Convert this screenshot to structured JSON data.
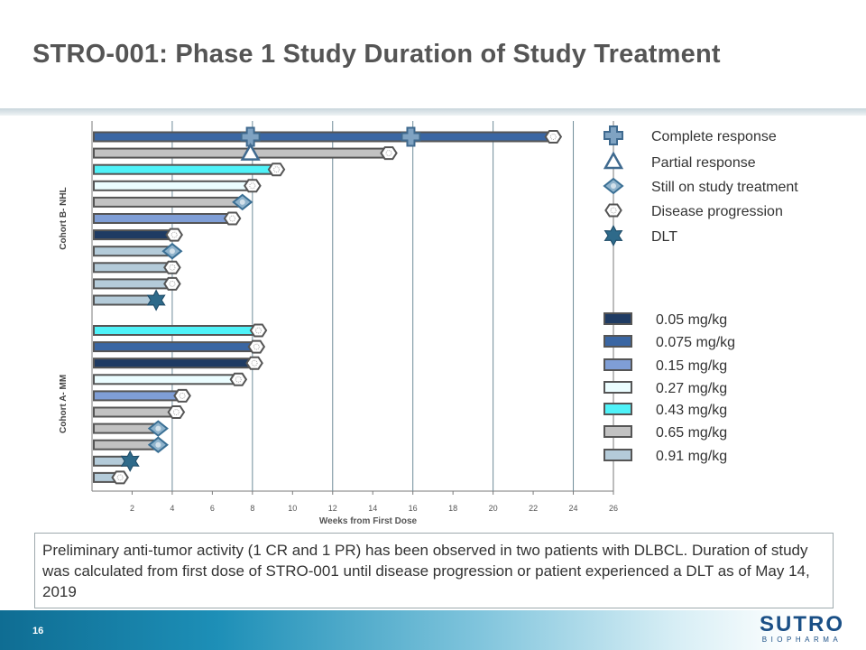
{
  "slide": {
    "title": "STRO-001:  Phase 1 Study Duration of Study Treatment",
    "caption": "Preliminary anti-tumor activity (1 CR and 1 PR) has been observed in two patients with DLBCL. Duration of study was calculated from first dose of STRO-001 until disease progression or patient experienced a DLT as of May 14, 2019",
    "page_number": "16",
    "logo_main": "SUTRO",
    "logo_sub": "BIOPHARMA"
  },
  "chart_data": {
    "type": "bar",
    "orientation": "horizontal",
    "title": "",
    "xlabel": "Weeks from First Dose",
    "xlim": [
      0,
      26
    ],
    "xticks": [
      2,
      4,
      6,
      8,
      10,
      12,
      14,
      16,
      18,
      20,
      22,
      24,
      26
    ],
    "gridlines_at": [
      4,
      8,
      12,
      16,
      20,
      24
    ],
    "groups": [
      {
        "label": "Cohort B- NHL",
        "bars": [
          {
            "value": 23.0,
            "dose": "0.075 mg/kg",
            "end": "Disease progression",
            "markers": [
              {
                "type": "Complete response",
                "at": 7.9
              },
              {
                "type": "Complete response",
                "at": 15.9
              }
            ]
          },
          {
            "value": 14.8,
            "dose": "0.65 mg/kg",
            "end": "Disease progression",
            "markers": [
              {
                "type": "Partial response",
                "at": 7.9
              }
            ]
          },
          {
            "value": 9.2,
            "dose": "0.43 mg/kg",
            "end": "Disease progression",
            "markers": []
          },
          {
            "value": 8.0,
            "dose": "0.27 mg/kg",
            "end": "Disease progression",
            "markers": []
          },
          {
            "value": 7.5,
            "dose": "0.65 mg/kg",
            "end": "Still on study treatment",
            "markers": []
          },
          {
            "value": 7.0,
            "dose": "0.15 mg/kg",
            "end": "Disease progression",
            "markers": []
          },
          {
            "value": 4.1,
            "dose": "0.05 mg/kg",
            "end": "Disease progression",
            "markers": []
          },
          {
            "value": 4.0,
            "dose": "0.91 mg/kg",
            "end": "Still on study treatment",
            "markers": []
          },
          {
            "value": 4.0,
            "dose": "0.91 mg/kg",
            "end": "Disease progression",
            "markers": []
          },
          {
            "value": 4.0,
            "dose": "0.91 mg/kg",
            "end": "Disease progression",
            "markers": []
          },
          {
            "value": 3.2,
            "dose": "0.91 mg/kg",
            "end": "DLT",
            "markers": []
          }
        ]
      },
      {
        "label": "Cohort A- MM",
        "bars": [
          {
            "value": 8.3,
            "dose": "0.43 mg/kg",
            "end": "Disease progression",
            "markers": []
          },
          {
            "value": 8.2,
            "dose": "0.075 mg/kg",
            "end": "Disease progression",
            "markers": []
          },
          {
            "value": 8.1,
            "dose": "0.05 mg/kg",
            "end": "Disease progression",
            "markers": []
          },
          {
            "value": 7.3,
            "dose": "0.27 mg/kg",
            "end": "Disease progression",
            "markers": []
          },
          {
            "value": 4.5,
            "dose": "0.15 mg/kg",
            "end": "Disease progression",
            "markers": []
          },
          {
            "value": 4.2,
            "dose": "0.65 mg/kg",
            "end": "Disease progression",
            "markers": []
          },
          {
            "value": 3.3,
            "dose": "0.65 mg/kg",
            "end": "Still on study treatment",
            "markers": []
          },
          {
            "value": 3.3,
            "dose": "0.65 mg/kg",
            "end": "Still on study treatment",
            "markers": []
          },
          {
            "value": 1.9,
            "dose": "0.91 mg/kg",
            "end": "DLT",
            "markers": []
          },
          {
            "value": 1.4,
            "dose": "0.91 mg/kg",
            "end": "Disease progression",
            "markers": []
          }
        ]
      }
    ],
    "marker_legend": [
      {
        "label": "Complete response",
        "symbol": "plus"
      },
      {
        "label": "Partial response",
        "symbol": "triangle"
      },
      {
        "label": "Still on study treatment",
        "symbol": "diamond"
      },
      {
        "label": "Disease progression",
        "symbol": "hexagon"
      },
      {
        "label": "DLT",
        "symbol": "star"
      }
    ],
    "dose_legend": [
      {
        "label": "0.05 mg/kg",
        "color": "#1f3b63"
      },
      {
        "label": "0.075 mg/kg",
        "color": "#3a66a3"
      },
      {
        "label": "0.15 mg/kg",
        "color": "#7f9ed6"
      },
      {
        "label": "0.27 mg/kg",
        "color": "#ebfdff"
      },
      {
        "label": "0.43 mg/kg",
        "color": "#4ff2f8"
      },
      {
        "label": "0.65 mg/kg",
        "color": "#c2c2c2"
      },
      {
        "label": "0.91 mg/kg",
        "color": "#b4cbd9"
      }
    ]
  }
}
